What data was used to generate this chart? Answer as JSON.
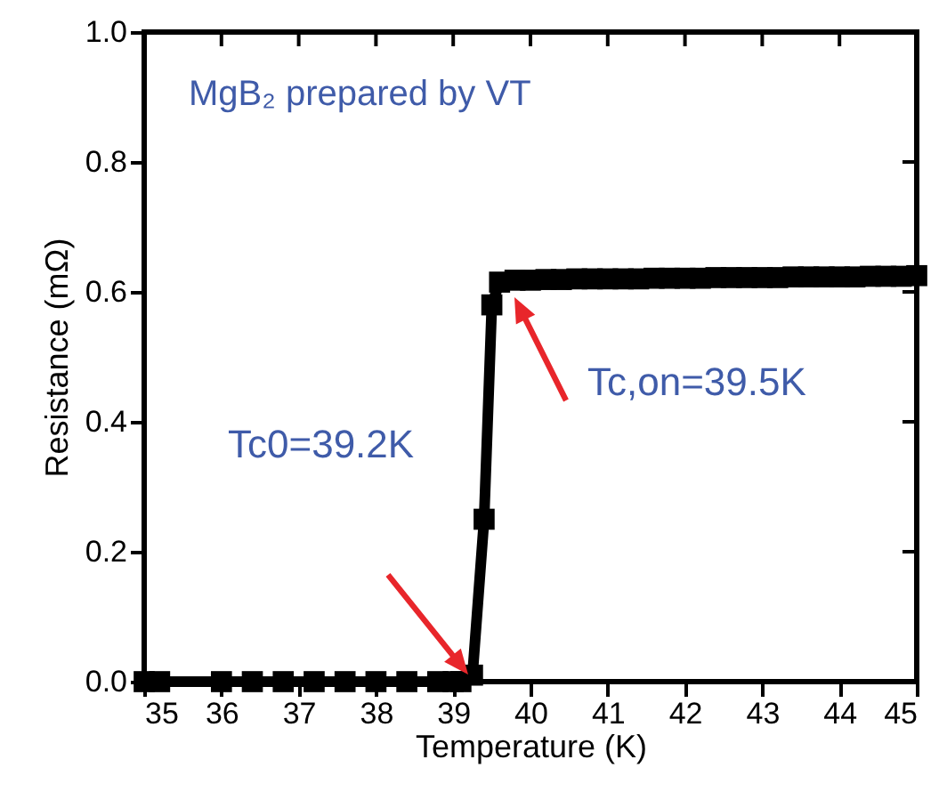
{
  "chart_data": {
    "type": "line",
    "xlabel": "Temperature (K)",
    "ylabel": "Resistance (mΩ)",
    "annotations": [
      "MgB₂ prepared by VT",
      "Tc0=39.2K",
      "Tc,on=39.5K"
    ],
    "x": [
      35.0,
      35.2,
      36.0,
      36.4,
      36.8,
      37.2,
      37.6,
      38.0,
      38.4,
      38.8,
      39.0,
      39.1,
      39.25,
      39.4,
      39.5,
      39.6,
      39.8,
      40.0,
      40.2,
      40.4,
      40.6,
      40.8,
      41.0,
      41.2,
      41.4,
      41.6,
      41.8,
      42.0,
      42.2,
      42.4,
      42.6,
      42.8,
      43.0,
      43.2,
      43.4,
      43.6,
      43.8,
      44.0,
      44.2,
      44.4,
      44.6,
      44.8,
      45.0
    ],
    "series": [
      {
        "color": "#000000",
        "values": [
          0.0,
          0.0,
          0.0,
          0.0,
          0.0,
          0.0,
          0.0,
          0.0,
          0.0,
          0.0,
          0.0,
          0.0,
          0.01,
          0.25,
          0.58,
          0.615,
          0.618,
          0.618,
          0.619,
          0.619,
          0.62,
          0.62,
          0.62,
          0.62,
          0.62,
          0.621,
          0.621,
          0.621,
          0.621,
          0.622,
          0.622,
          0.622,
          0.622,
          0.622,
          0.623,
          0.623,
          0.623,
          0.623,
          0.623,
          0.624,
          0.624,
          0.624,
          0.625
        ]
      }
    ],
    "marker": "square",
    "line_style": "solid",
    "xlim": [
      35,
      45
    ],
    "xticks": [
      35,
      36,
      37,
      38,
      39,
      40,
      41,
      42,
      43,
      44,
      45
    ],
    "ylim": [
      0,
      1.0
    ],
    "yticks": [
      {
        "value": 0,
        "label": "0.0"
      },
      {
        "value": 0.2,
        "label": "0.2"
      },
      {
        "value": 0.4,
        "label": "0.4"
      },
      {
        "value": 0.6,
        "label": "0.6"
      },
      {
        "value": 0.8,
        "label": "0.8"
      },
      {
        "value": 1.0,
        "label": "1.0"
      }
    ],
    "grid": false
  }
}
